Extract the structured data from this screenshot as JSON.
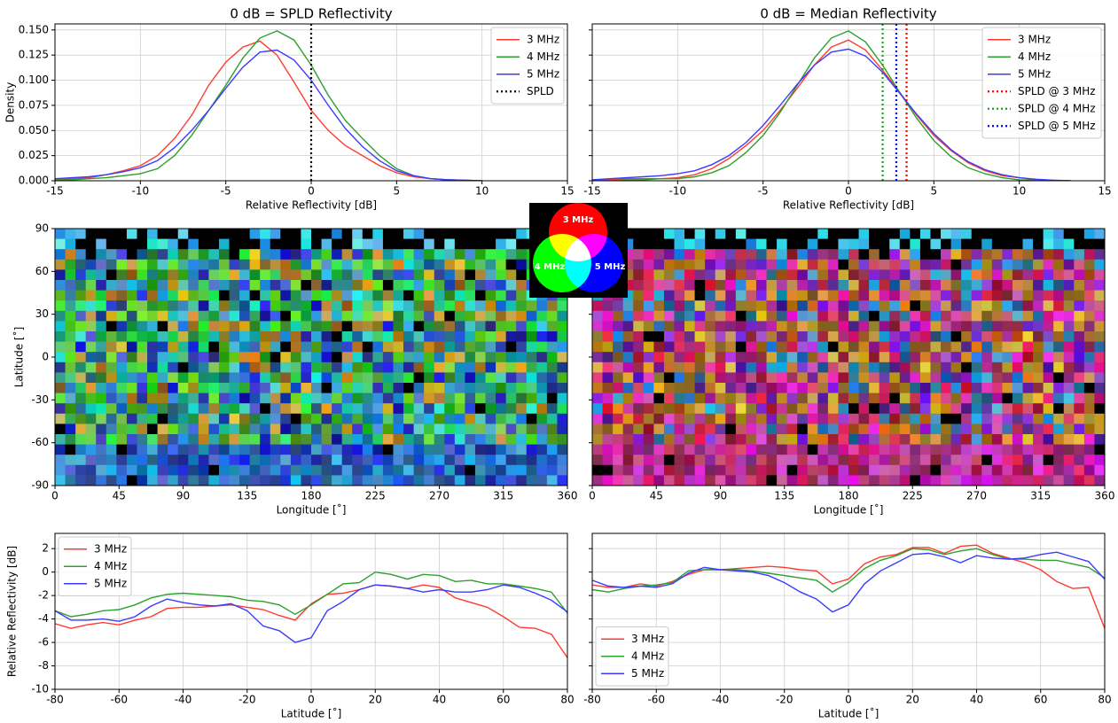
{
  "chart_data": [
    {
      "type": "line",
      "title": "0 dB = SPLD Reflectivity",
      "xlabel": "Relative Reflectivity [dB]",
      "ylabel": "Density",
      "x": [
        -15,
        -14,
        -13,
        -12,
        -11,
        -10,
        -9,
        -8,
        -7,
        -6,
        -5,
        -4,
        -3,
        -2,
        -1,
        0,
        1,
        2,
        3,
        4,
        5,
        6,
        7,
        8,
        9,
        10
      ],
      "series": [
        {
          "name": "3 MHz",
          "color": "#ff3b30",
          "values": [
            0.001,
            0.002,
            0.003,
            0.006,
            0.01,
            0.015,
            0.025,
            0.042,
            0.065,
            0.095,
            0.118,
            0.133,
            0.139,
            0.125,
            0.098,
            0.07,
            0.05,
            0.035,
            0.025,
            0.015,
            0.008,
            0.004,
            0.002,
            0.001,
            0.0005,
            0
          ]
        },
        {
          "name": "4 MHz",
          "color": "#2ca02c",
          "values": [
            0.001,
            0.001,
            0.002,
            0.003,
            0.005,
            0.007,
            0.012,
            0.025,
            0.045,
            0.07,
            0.095,
            0.122,
            0.142,
            0.149,
            0.14,
            0.115,
            0.085,
            0.06,
            0.042,
            0.025,
            0.012,
            0.005,
            0.002,
            0.001,
            0.0005,
            0
          ]
        },
        {
          "name": "5 MHz",
          "color": "#3b3bff",
          "values": [
            0.002,
            0.003,
            0.004,
            0.006,
            0.009,
            0.013,
            0.02,
            0.033,
            0.05,
            0.07,
            0.092,
            0.113,
            0.128,
            0.13,
            0.12,
            0.1,
            0.075,
            0.052,
            0.034,
            0.02,
            0.01,
            0.005,
            0.002,
            0.001,
            0.0005,
            0
          ]
        },
        {
          "name": "SPLD",
          "color": "#000000",
          "vline": 0,
          "linestyle": "dotted"
        }
      ],
      "xlim": [
        -15,
        15
      ],
      "xticks": [
        -15,
        -10,
        -5,
        0,
        5,
        10,
        15
      ],
      "ylim": [
        0,
        0.156
      ],
      "yticks": [
        {
          "value": 0,
          "label": "0.000"
        },
        {
          "value": 0.025,
          "label": "0.025"
        },
        {
          "value": 0.05,
          "label": "0.050"
        },
        {
          "value": 0.075,
          "label": "0.075"
        },
        {
          "value": 0.1,
          "label": "0.100"
        },
        {
          "value": 0.125,
          "label": "0.125"
        },
        {
          "value": 0.15,
          "label": "0.150"
        }
      ],
      "grid": true,
      "legend": "upper right"
    },
    {
      "type": "line",
      "title": "0 dB = Median Reflectivity",
      "xlabel": "Relative Reflectivity [dB]",
      "x": [
        -15,
        -14,
        -13,
        -12,
        -11,
        -10,
        -9,
        -8,
        -7,
        -6,
        -5,
        -4,
        -3,
        -2,
        -1,
        0,
        1,
        2,
        3,
        4,
        5,
        6,
        7,
        8,
        9,
        10,
        11,
        12,
        13
      ],
      "series": [
        {
          "name": "3 MHz",
          "color": "#ff3b30",
          "values": [
            0.001,
            0.001,
            0.002,
            0.002,
            0.002,
            0.003,
            0.006,
            0.012,
            0.022,
            0.035,
            0.05,
            0.07,
            0.092,
            0.115,
            0.133,
            0.14,
            0.13,
            0.11,
            0.088,
            0.065,
            0.045,
            0.03,
            0.018,
            0.01,
            0.005,
            0.003,
            0.001,
            0.0005,
            0
          ]
        },
        {
          "name": "4 MHz",
          "color": "#2ca02c",
          "values": [
            0,
            0,
            0.001,
            0.001,
            0.002,
            0.002,
            0.004,
            0.008,
            0.015,
            0.028,
            0.045,
            0.068,
            0.095,
            0.122,
            0.142,
            0.149,
            0.138,
            0.115,
            0.088,
            0.062,
            0.04,
            0.024,
            0.013,
            0.007,
            0.003,
            0.001,
            0.0005,
            0,
            0
          ]
        },
        {
          "name": "5 MHz",
          "color": "#3b3bff",
          "values": [
            0.001,
            0.002,
            0.003,
            0.004,
            0.005,
            0.007,
            0.01,
            0.016,
            0.025,
            0.038,
            0.055,
            0.075,
            0.096,
            0.115,
            0.128,
            0.131,
            0.124,
            0.108,
            0.087,
            0.066,
            0.047,
            0.031,
            0.019,
            0.011,
            0.006,
            0.003,
            0.0015,
            0.0005,
            0
          ]
        },
        {
          "name": "SPLD @ 3 MHz",
          "color": "#ff0000",
          "vline": 3.4,
          "linestyle": "dotted"
        },
        {
          "name": "SPLD @ 4 MHz",
          "color": "#1a9e1a",
          "vline": 2.0,
          "linestyle": "dotted"
        },
        {
          "name": "SPLD @ 5 MHz",
          "color": "#0000ff",
          "vline": 2.8,
          "linestyle": "dotted"
        }
      ],
      "xlim": [
        -15,
        15
      ],
      "xticks": [
        -15,
        -10,
        -5,
        0,
        5,
        10,
        15
      ],
      "sharey": true,
      "grid": true,
      "legend": "upper right"
    },
    {
      "type": "image",
      "xlabel": "Longitude [˚]",
      "ylabel": "Latitude [˚]",
      "xlim": [
        0,
        360
      ],
      "xticks": [
        0,
        45,
        90,
        135,
        180,
        225,
        270,
        315,
        360
      ],
      "ylim": [
        -90,
        90
      ],
      "yticks": [
        -90,
        -60,
        -30,
        0,
        30,
        60,
        90
      ],
      "grid": false
    },
    {
      "type": "image",
      "xlabel": "Longitude [˚]",
      "xlim": [
        0,
        360
      ],
      "xticks": [
        0,
        45,
        90,
        135,
        180,
        225,
        270,
        315,
        360
      ],
      "sharey": true,
      "grid": false
    },
    {
      "type": "rgb-key",
      "labels": [
        "3 MHz",
        "4 MHz",
        "5 MHz"
      ],
      "colors": [
        "#ff0000",
        "#00ff00",
        "#0000ff"
      ]
    },
    {
      "type": "line",
      "xlabel": "Latitude [˚]",
      "ylabel": "Relative Reflectivity [dB]",
      "x": [
        -80,
        -75,
        -70,
        -65,
        -60,
        -55,
        -50,
        -45,
        -40,
        -35,
        -30,
        -25,
        -20,
        -15,
        -10,
        -5,
        0,
        5,
        10,
        15,
        20,
        25,
        30,
        35,
        40,
        45,
        50,
        55,
        60,
        65,
        70,
        75,
        80
      ],
      "series": [
        {
          "name": "3 MHz",
          "color": "#ff3b30",
          "values": [
            -4.4,
            -4.8,
            -4.5,
            -4.3,
            -4.5,
            -4.1,
            -3.8,
            -3.1,
            -3.0,
            -3.0,
            -2.9,
            -2.8,
            -3.0,
            -3.2,
            -3.7,
            -4.1,
            -2.7,
            -1.9,
            -1.8,
            -1.5,
            -1.1,
            -1.2,
            -1.4,
            -1.1,
            -1.3,
            -2.2,
            -2.6,
            -3.0,
            -3.8,
            -4.7,
            -4.8,
            -5.3,
            -7.3
          ]
        },
        {
          "name": "4 MHz",
          "color": "#2ca02c",
          "values": [
            -3.3,
            -3.8,
            -3.6,
            -3.3,
            -3.2,
            -2.8,
            -2.2,
            -1.9,
            -1.8,
            -1.9,
            -2.0,
            -2.1,
            -2.4,
            -2.5,
            -2.8,
            -3.6,
            -2.8,
            -1.9,
            -1.0,
            -0.9,
            0.0,
            -0.2,
            -0.6,
            -0.2,
            -0.3,
            -0.8,
            -0.7,
            -1.0,
            -1.0,
            -1.2,
            -1.4,
            -1.7,
            -3.5
          ]
        },
        {
          "name": "5 MHz",
          "color": "#3b3bff",
          "values": [
            -3.3,
            -4.1,
            -4.1,
            -4.0,
            -4.2,
            -3.8,
            -2.9,
            -2.3,
            -2.6,
            -2.8,
            -2.9,
            -2.7,
            -3.3,
            -4.6,
            -5.0,
            -6.0,
            -5.6,
            -3.3,
            -2.5,
            -1.5,
            -1.1,
            -1.2,
            -1.4,
            -1.7,
            -1.5,
            -1.7,
            -1.7,
            -1.5,
            -1.1,
            -1.3,
            -1.8,
            -2.4,
            -3.4
          ]
        }
      ],
      "xlim": [
        -80,
        80
      ],
      "xticks": [
        -80,
        -60,
        -40,
        -20,
        0,
        20,
        40,
        60,
        80
      ],
      "ylim": [
        -10,
        3.3
      ],
      "yticks": [
        -10,
        -8,
        -6,
        -4,
        -2,
        0,
        2
      ],
      "grid": true,
      "legend": "upper left"
    },
    {
      "type": "line",
      "xlabel": "Latitude [˚]",
      "x": [
        -80,
        -75,
        -70,
        -65,
        -60,
        -55,
        -50,
        -45,
        -40,
        -35,
        -30,
        -25,
        -20,
        -15,
        -10,
        -5,
        0,
        5,
        10,
        15,
        20,
        25,
        30,
        35,
        40,
        45,
        50,
        55,
        60,
        65,
        70,
        75,
        80
      ],
      "series": [
        {
          "name": "3 MHz",
          "color": "#ff3b30",
          "values": [
            -1.1,
            -1.3,
            -1.3,
            -1.0,
            -1.2,
            -0.8,
            -0.2,
            0.2,
            0.2,
            0.3,
            0.4,
            0.5,
            0.4,
            0.2,
            0.1,
            -1.0,
            -0.6,
            0.7,
            1.3,
            1.5,
            2.1,
            2.1,
            1.6,
            2.2,
            2.3,
            1.6,
            1.2,
            0.8,
            0.2,
            -0.8,
            -1.4,
            -1.3,
            -4.8
          ]
        },
        {
          "name": "4 MHz",
          "color": "#2ca02c",
          "values": [
            -1.5,
            -1.7,
            -1.4,
            -1.2,
            -1.1,
            -0.9,
            0.1,
            0.2,
            0.2,
            0.2,
            0.1,
            -0.1,
            -0.3,
            -0.5,
            -0.7,
            -1.7,
            -0.9,
            0.3,
            1.0,
            1.4,
            2.0,
            1.9,
            1.5,
            1.8,
            2.0,
            1.5,
            1.1,
            1.1,
            1.0,
            1.0,
            0.7,
            0.4,
            -0.5
          ]
        },
        {
          "name": "5 MHz",
          "color": "#3b3bff",
          "values": [
            -0.7,
            -1.2,
            -1.3,
            -1.2,
            -1.3,
            -1.0,
            -0.1,
            0.4,
            0.2,
            0.1,
            0.0,
            -0.3,
            -0.9,
            -1.7,
            -2.3,
            -3.4,
            -2.8,
            -1.0,
            0.1,
            0.8,
            1.5,
            1.6,
            1.3,
            0.8,
            1.4,
            1.2,
            1.1,
            1.2,
            1.5,
            1.7,
            1.3,
            0.9,
            -0.6
          ]
        }
      ],
      "xlim": [
        -80,
        80
      ],
      "xticks": [
        -80,
        -60,
        -40,
        -20,
        0,
        20,
        40,
        60,
        80
      ],
      "sharey": true,
      "grid": true,
      "legend": "lower left"
    }
  ]
}
